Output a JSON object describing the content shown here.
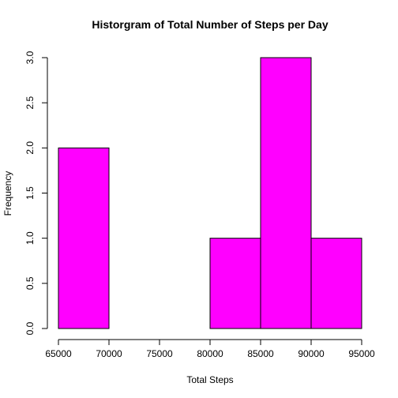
{
  "chart_data": {
    "type": "bar",
    "title": "Historgram of Total Number of Steps per Day",
    "xlabel": "Total Steps",
    "ylabel": "Frequency",
    "bins": [
      {
        "start": 65000,
        "end": 70000,
        "value": 2
      },
      {
        "start": 70000,
        "end": 75000,
        "value": 0
      },
      {
        "start": 75000,
        "end": 80000,
        "value": 0
      },
      {
        "start": 80000,
        "end": 85000,
        "value": 1
      },
      {
        "start": 85000,
        "end": 90000,
        "value": 3
      },
      {
        "start": 90000,
        "end": 95000,
        "value": 1
      }
    ],
    "xlim": [
      65000,
      95000
    ],
    "ylim": [
      0,
      3
    ],
    "xticks": [
      "65000",
      "70000",
      "75000",
      "80000",
      "85000",
      "90000",
      "95000"
    ],
    "yticks": [
      "0.0",
      "0.5",
      "1.0",
      "1.5",
      "2.0",
      "2.5",
      "3.0"
    ],
    "bar_color": "#ff00ff",
    "grid": false
  }
}
